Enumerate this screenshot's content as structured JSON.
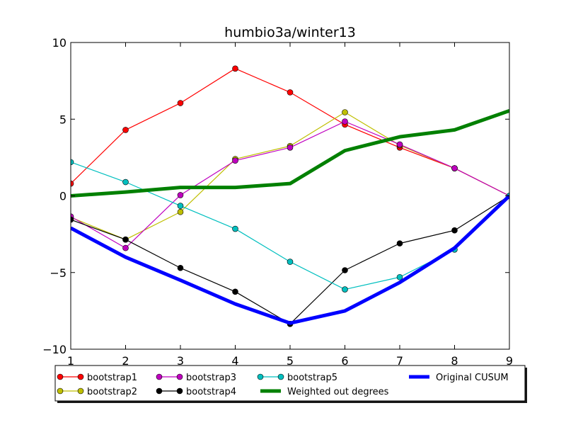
{
  "chart_data": {
    "type": "line",
    "title": "humbio3a/winter13",
    "xlabel": "",
    "ylabel": "",
    "xlim": [
      1,
      9
    ],
    "ylim": [
      -10,
      10
    ],
    "x": [
      1,
      2,
      3,
      4,
      5,
      6,
      7,
      8,
      9
    ],
    "xticks": [
      "1",
      "2",
      "3",
      "4",
      "5",
      "6",
      "7",
      "8",
      "9"
    ],
    "yticks": [
      {
        "value": -10,
        "label": "−10"
      },
      {
        "value": -5,
        "label": "−5"
      },
      {
        "value": 0,
        "label": "0"
      },
      {
        "value": 5,
        "label": "5"
      },
      {
        "value": 10,
        "label": "10"
      }
    ],
    "grid": false,
    "legend_placement": "below plot, 4 columns",
    "series": [
      {
        "name": "bootstrap1",
        "color": "#ff0000",
        "marker": true,
        "thick": false,
        "values": [
          0.8,
          4.3,
          6.05,
          8.3,
          6.75,
          4.65,
          3.15,
          1.8,
          0.0
        ]
      },
      {
        "name": "bootstrap2",
        "color": "#bfbf00",
        "marker": true,
        "thick": false,
        "values": [
          -1.4,
          -2.85,
          -1.05,
          2.4,
          3.25,
          5.45,
          3.3,
          1.8,
          0.0
        ]
      },
      {
        "name": "bootstrap3",
        "color": "#bf00bf",
        "marker": true,
        "thick": false,
        "values": [
          -1.35,
          -3.4,
          0.05,
          2.3,
          3.15,
          4.85,
          3.35,
          1.8,
          0.0
        ]
      },
      {
        "name": "bootstrap4",
        "color": "#000000",
        "marker": true,
        "thick": false,
        "values": [
          -1.55,
          -2.85,
          -4.7,
          -6.25,
          -8.35,
          -4.85,
          -3.1,
          -2.25,
          0.0
        ]
      },
      {
        "name": "bootstrap5",
        "color": "#00bfbf",
        "marker": true,
        "thick": false,
        "values": [
          2.2,
          0.9,
          -0.65,
          -2.15,
          -4.3,
          -6.1,
          -5.3,
          -3.5,
          0.0
        ]
      },
      {
        "name": "Weighted out degrees",
        "color": "#008000",
        "marker": false,
        "thick": true,
        "values": [
          0.0,
          0.25,
          0.55,
          0.55,
          0.8,
          2.95,
          3.85,
          4.3,
          5.55
        ]
      },
      {
        "name": "Original CUSUM",
        "color": "#0000ff",
        "marker": false,
        "thick": true,
        "values": [
          -2.1,
          -4.0,
          -5.5,
          -7.05,
          -8.3,
          -7.5,
          -5.65,
          -3.4,
          0.0
        ]
      }
    ],
    "legend_order": [
      0,
      1,
      2,
      3,
      4,
      5,
      6
    ]
  }
}
